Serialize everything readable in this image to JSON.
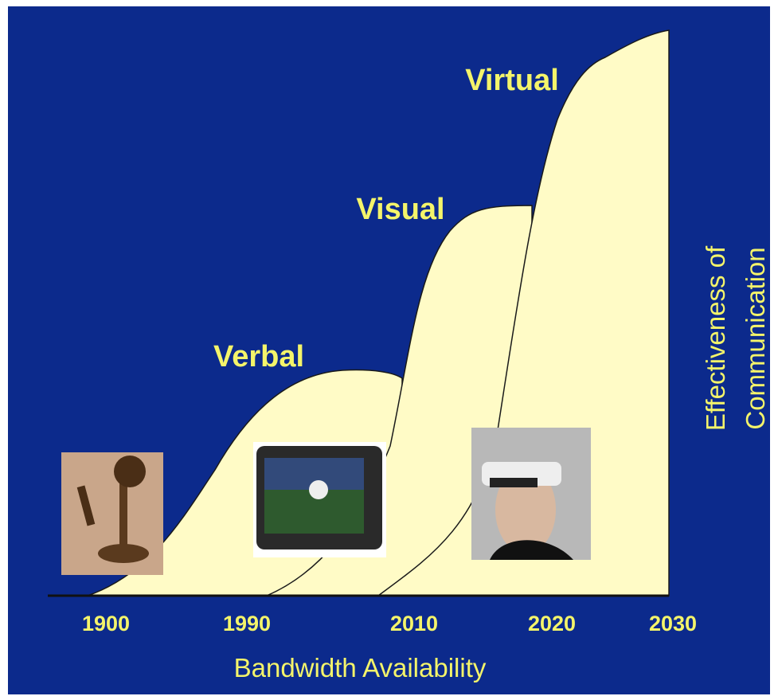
{
  "stages": [
    "Verbal",
    "Visual",
    "Virtual"
  ],
  "x_axis": {
    "ticks": [
      "1900",
      "1990",
      "2010",
      "2020",
      "2030"
    ],
    "title": "Bandwidth Availability"
  },
  "y_axis": {
    "title_lines": [
      "Effectiveness of",
      "Communication"
    ]
  }
}
